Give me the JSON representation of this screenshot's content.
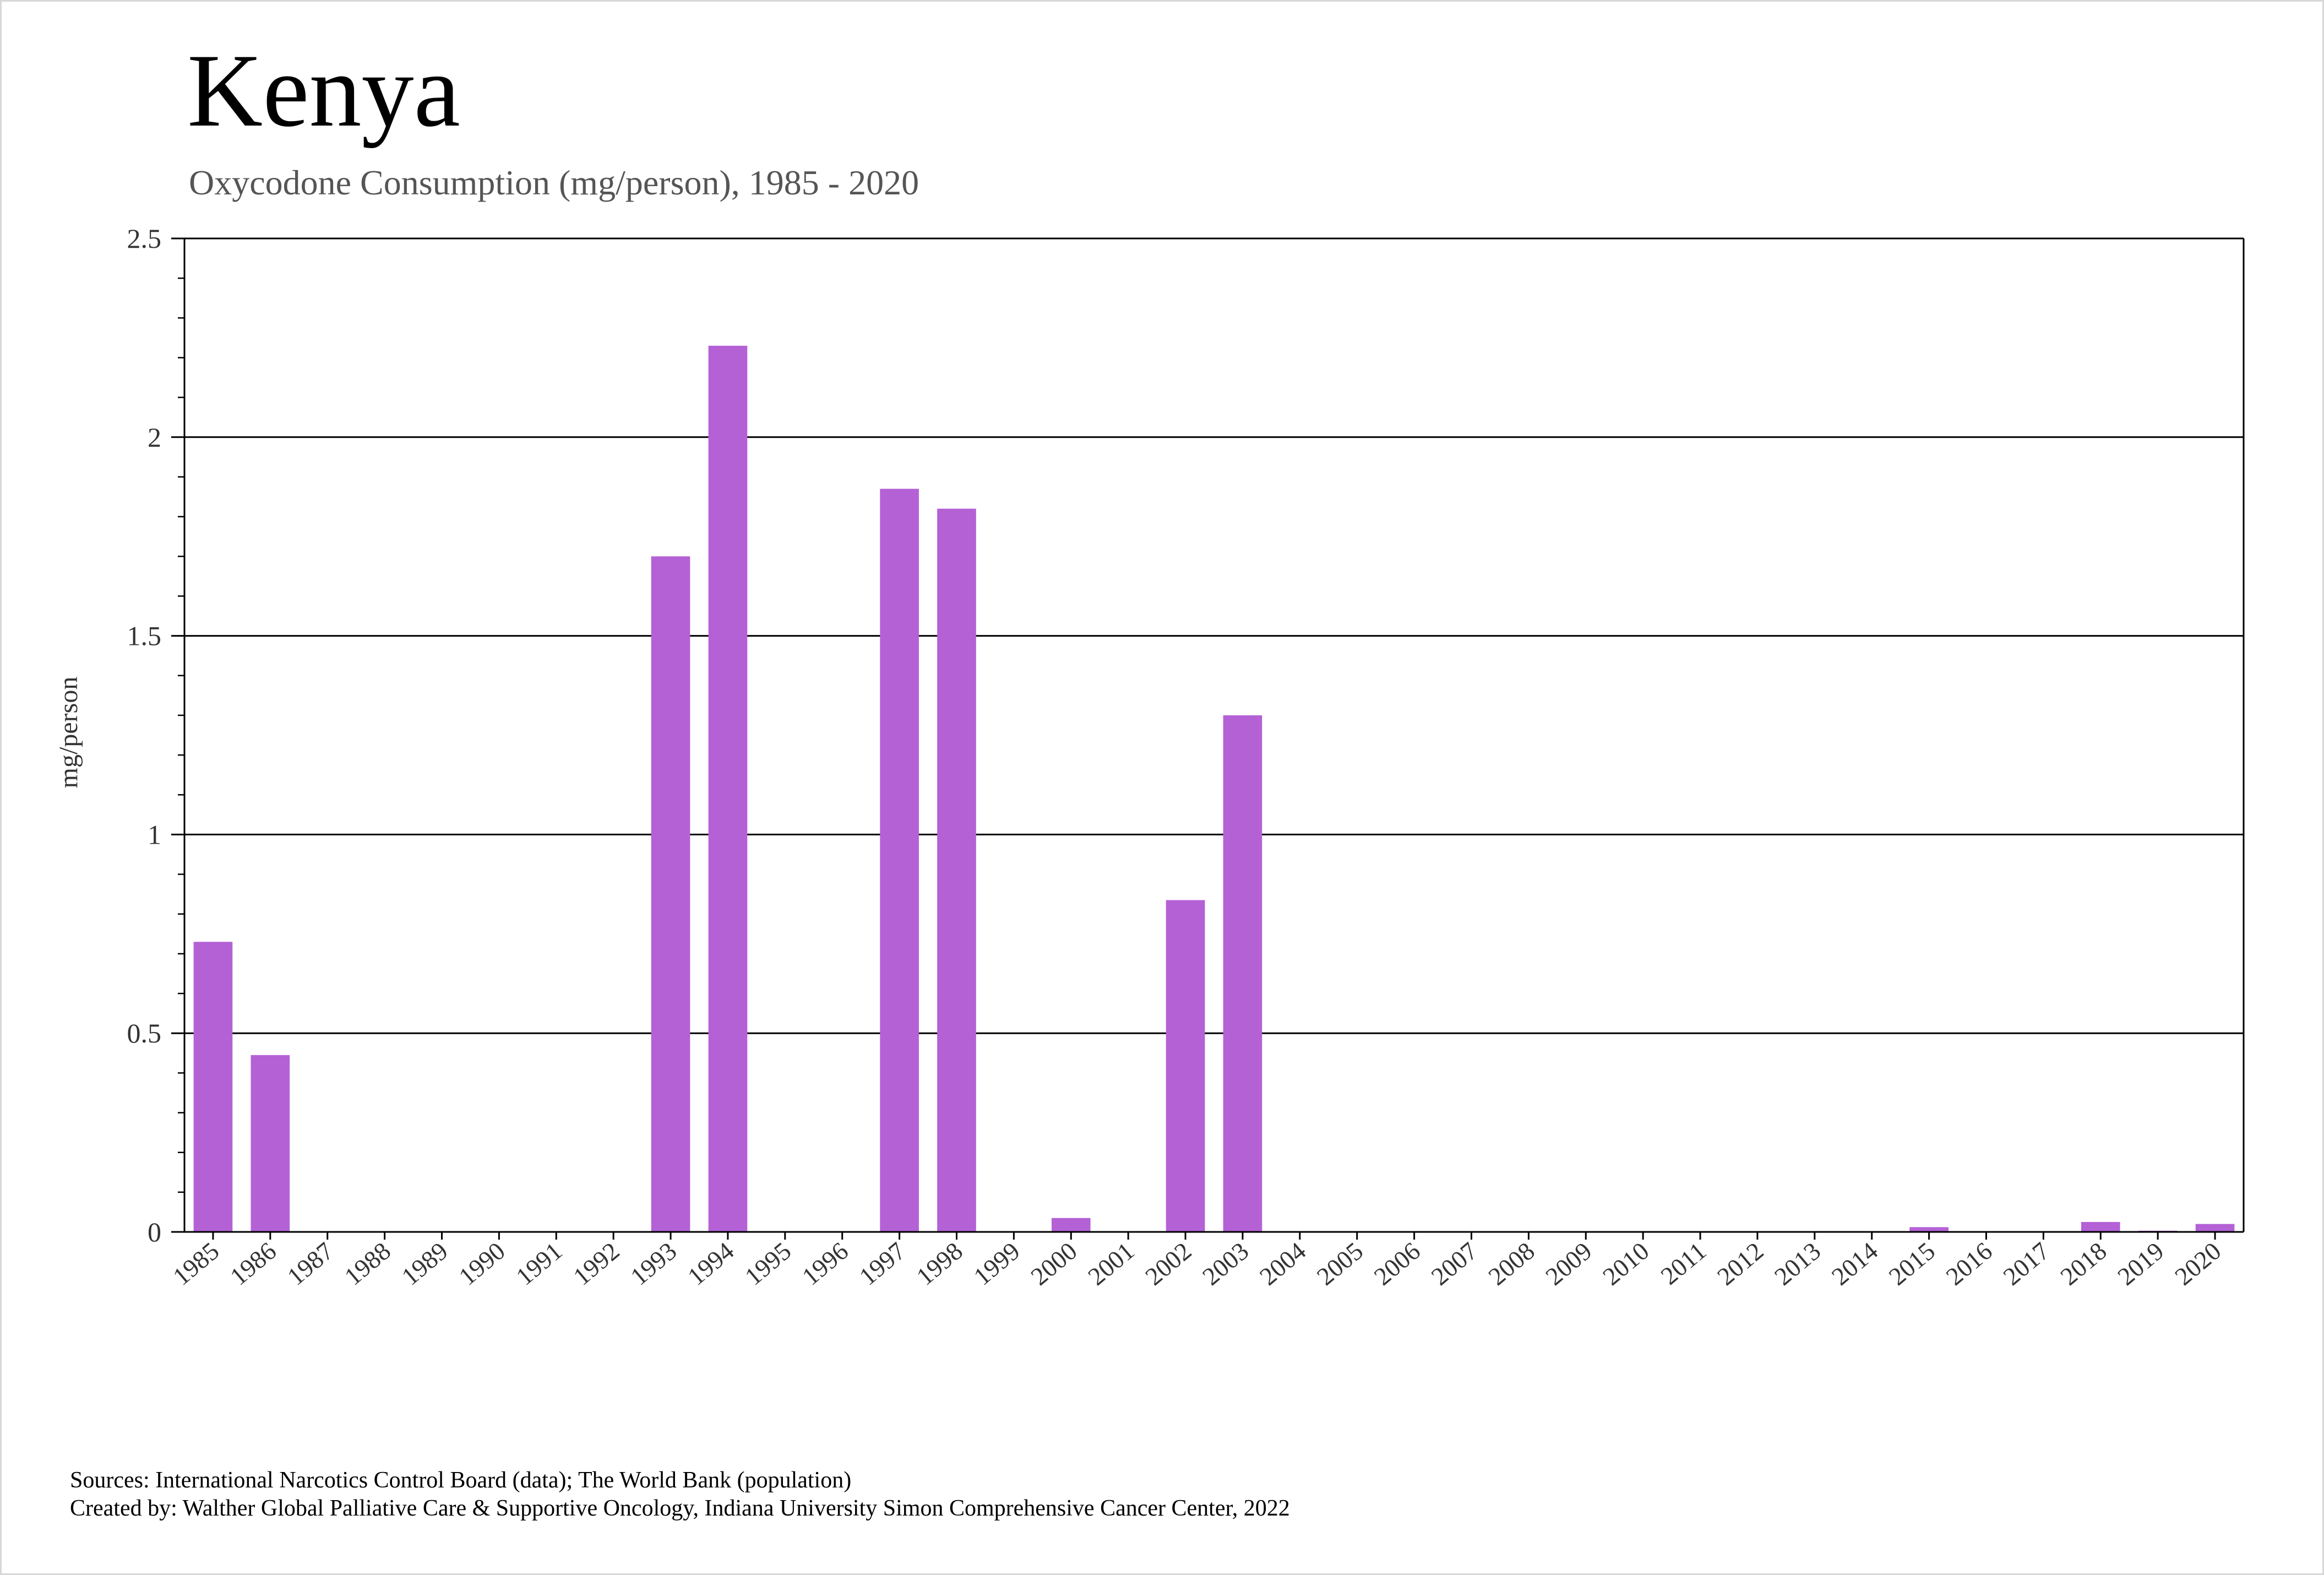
{
  "title": "Kenya",
  "subtitle": "Oxycodone Consumption (mg/person), 1985 - 2020",
  "footer": {
    "sources": "Sources: International Narcotics Control Board (data); The World Bank (population)",
    "created_by": "Created by: Walther Global Palliative Care & Supportive Oncology, Indiana University Simon Comprehensive Cancer Center, 2022"
  },
  "colors": {
    "bar": "#b461d6",
    "grid": "#000000"
  },
  "chart_data": {
    "type": "bar",
    "title": "Kenya",
    "subtitle": "Oxycodone Consumption (mg/person), 1985 - 2020",
    "xlabel": "",
    "ylabel": "mg/person",
    "ylim": [
      0,
      2.5
    ],
    "yticks": [
      "0",
      "0.5",
      "1",
      "1.5",
      "2",
      "2.5"
    ],
    "grid": true,
    "legend": "none",
    "categories": [
      "1985",
      "1986",
      "1987",
      "1988",
      "1989",
      "1990",
      "1991",
      "1992",
      "1993",
      "1994",
      "1995",
      "1996",
      "1997",
      "1998",
      "1999",
      "2000",
      "2001",
      "2002",
      "2003",
      "2004",
      "2005",
      "2006",
      "2007",
      "2008",
      "2009",
      "2010",
      "2011",
      "2012",
      "2013",
      "2014",
      "2015",
      "2016",
      "2017",
      "2018",
      "2019",
      "2020"
    ],
    "values": [
      0.73,
      0.445,
      0,
      0,
      0,
      0,
      0,
      0,
      1.7,
      2.23,
      0,
      0,
      1.87,
      1.82,
      0,
      0.035,
      0,
      0.835,
      1.3,
      0,
      0,
      0,
      0,
      0,
      0,
      0,
      0,
      0,
      0,
      0,
      0.012,
      0,
      0,
      0.025,
      0.003,
      0.02
    ]
  }
}
